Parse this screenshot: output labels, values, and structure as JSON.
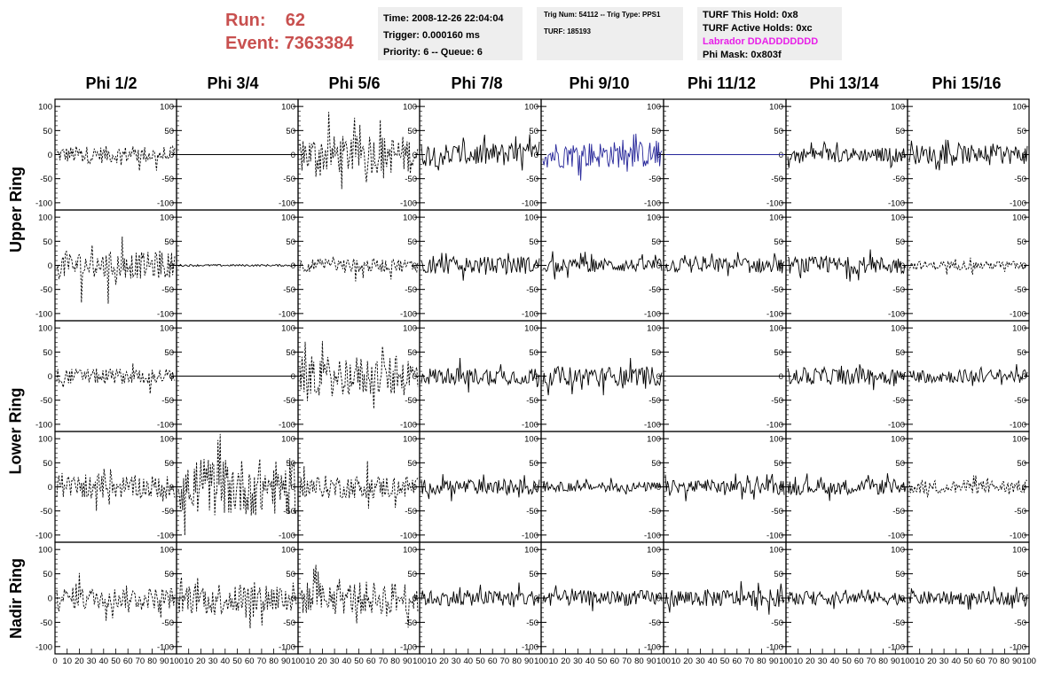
{
  "run": {
    "run_label": "Run:",
    "run_value": "62",
    "event_label": "Event:",
    "event_value": "7363384"
  },
  "info_box1": {
    "time": "Time: 2008-12-26 22:04:04",
    "trigger": "Trigger: 0.000160 ms",
    "priority": "Priority: 6 -- Queue: 6"
  },
  "info_box2": {
    "trig": "Trig Num: 54112 -- Trig Type: PPS1",
    "turf": "TURF: 185193"
  },
  "info_box3": {
    "this_hold": "TURF This Hold: 0x8",
    "active_holds": "TURF Active Holds: 0xc",
    "labrador": "Labrador DDADDDDDDD",
    "phi_mask": "Phi Mask: 0x803f"
  },
  "columns": [
    "Phi 1/2",
    "Phi 3/4",
    "Phi 5/6",
    "Phi 7/8",
    "Phi 9/10",
    "Phi 11/12",
    "Phi 13/14",
    "Phi 15/16"
  ],
  "rings": [
    "Upper Ring",
    "Lower Ring",
    "Nadir Ring"
  ],
  "y_ticks": [
    "100",
    "50",
    "0",
    "-50",
    "-100"
  ],
  "x_tick_labels": [
    "0",
    "10",
    "20",
    "30",
    "40",
    "50",
    "60",
    "70",
    "80",
    "90",
    "100"
  ],
  "colors": {
    "trace": "#000000",
    "highlight_trace": "#27279a",
    "empty_trace": "#000000",
    "run_text": "#c8504f",
    "labrador": "#e81fe8",
    "box_bg": "#eeeeee"
  },
  "chart_data": {
    "type": "line",
    "y_range": [
      -115,
      115
    ],
    "x_range": [
      0,
      100
    ],
    "rows": [
      {
        "name": "Upper Ring row 1",
        "panels": [
          {
            "style": "dashed",
            "amp": 18,
            "spikes": 45
          },
          {
            "style": "flat",
            "amp": 0
          },
          {
            "style": "dashed",
            "amp": 40,
            "spikes": 90
          },
          {
            "style": "solid",
            "amp": 25,
            "spikes": 45
          },
          {
            "style": "solid-blue",
            "amp": 28,
            "spikes": 55
          },
          {
            "style": "flat-blue",
            "amp": 0
          },
          {
            "style": "solid",
            "amp": 15,
            "spikes": 30
          },
          {
            "style": "solid",
            "amp": 20,
            "spikes": 35
          }
        ]
      },
      {
        "name": "Upper Ring row 2",
        "panels": [
          {
            "style": "dashed",
            "amp": 28,
            "spikes": 80
          },
          {
            "style": "flat-noise",
            "amp": 2
          },
          {
            "style": "dashed",
            "amp": 14,
            "spikes": 35
          },
          {
            "style": "solid",
            "amp": 18,
            "spikes": 35
          },
          {
            "style": "solid",
            "amp": 14,
            "spikes": 30
          },
          {
            "style": "solid",
            "amp": 16,
            "spikes": 30
          },
          {
            "style": "solid",
            "amp": 18,
            "spikes": 35
          },
          {
            "style": "dashed",
            "amp": 9,
            "spikes": 20
          }
        ]
      },
      {
        "name": "Lower Ring row 1",
        "panels": [
          {
            "style": "dashed",
            "amp": 16,
            "spikes": 40
          },
          {
            "style": "flat",
            "amp": 0
          },
          {
            "style": "dashed",
            "amp": 42,
            "spikes": 75
          },
          {
            "style": "solid",
            "amp": 18,
            "spikes": 40
          },
          {
            "style": "solid",
            "amp": 20,
            "spikes": 40
          },
          {
            "style": "flat",
            "amp": 0
          },
          {
            "style": "solid",
            "amp": 18,
            "spikes": 30
          },
          {
            "style": "solid",
            "amp": 14,
            "spikes": 25
          }
        ]
      },
      {
        "name": "Lower Ring row 2",
        "panels": [
          {
            "style": "dashed",
            "amp": 24,
            "spikes": 50
          },
          {
            "style": "dashed",
            "amp": 60,
            "spikes": 110
          },
          {
            "style": "dashed",
            "amp": 24,
            "spikes": 60
          },
          {
            "style": "solid",
            "amp": 16,
            "spikes": 30
          },
          {
            "style": "solid",
            "amp": 10,
            "spikes": 25
          },
          {
            "style": "solid",
            "amp": 14,
            "spikes": 30
          },
          {
            "style": "solid",
            "amp": 16,
            "spikes": 30
          },
          {
            "style": "dashed",
            "amp": 14,
            "spikes": 30
          }
        ]
      },
      {
        "name": "Nadir Ring",
        "panels": [
          {
            "style": "dashed",
            "amp": 22,
            "spikes": 55
          },
          {
            "style": "dashed",
            "amp": 34,
            "spikes": 65
          },
          {
            "style": "dashed",
            "amp": 34,
            "spikes": 75
          },
          {
            "style": "solid",
            "amp": 16,
            "spikes": 35
          },
          {
            "style": "solid",
            "amp": 16,
            "spikes": 30
          },
          {
            "style": "solid",
            "amp": 18,
            "spikes": 35
          },
          {
            "style": "solid",
            "amp": 14,
            "spikes": 25
          },
          {
            "style": "solid",
            "amp": 14,
            "spikes": 25
          }
        ]
      }
    ]
  }
}
